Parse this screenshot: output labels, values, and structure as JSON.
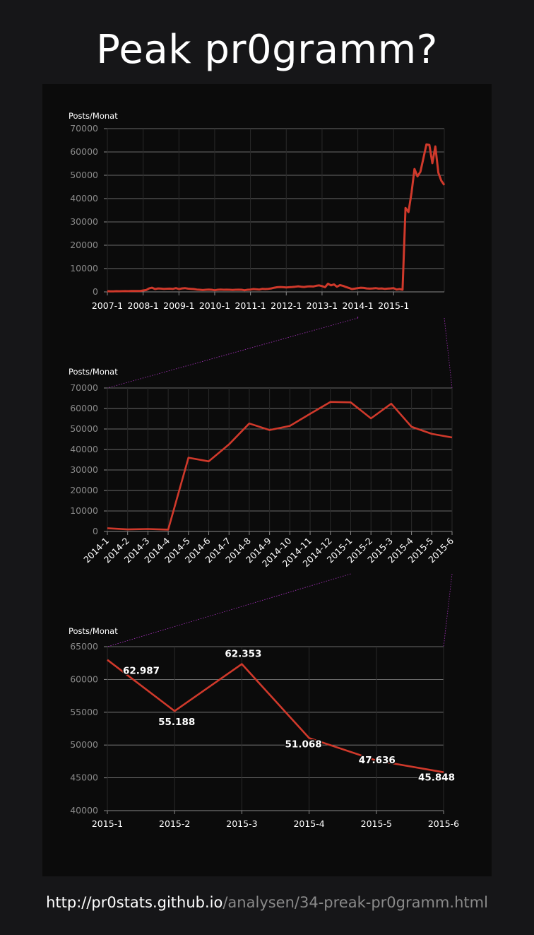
{
  "title": "Peak pr0gramm?",
  "footer": {
    "url_host": "http://pr0stats.github.io",
    "url_path": "/analysen/34-preak-pr0gramm.html"
  },
  "colors": {
    "line": "#d0392b",
    "zoom_connector": "#9b2fb0",
    "grid": "#8a8a8a",
    "text": "#ffffff",
    "panel": "#0b0b0b",
    "background": "#161618"
  },
  "chart_data": [
    {
      "type": "line",
      "ylabel": "Posts/Monat",
      "ylim": [
        0,
        70000
      ],
      "yticks": [
        0,
        10000,
        20000,
        30000,
        40000,
        50000,
        60000,
        70000
      ],
      "xticks": [
        "2007-1",
        "2008-1",
        "2009-1",
        "2010-1",
        "2011-1",
        "2012-1",
        "2013-1",
        "2014-1",
        "2015-1"
      ],
      "x_start": "2007-1",
      "x_end": "2015-6",
      "grid": true,
      "series": [
        {
          "values": [
            300,
            200,
            250,
            300,
            280,
            300,
            320,
            300,
            350,
            400,
            350,
            400,
            600,
            800,
            1500,
            1800,
            1200,
            1500,
            1400,
            1300,
            1350,
            1400,
            1300,
            1600,
            1200,
            1500,
            1600,
            1400,
            1300,
            1200,
            1000,
            900,
            800,
            900,
            1000,
            900,
            700,
            900,
            1000,
            900,
            950,
            900,
            850,
            900,
            950,
            900,
            700,
            900,
            1000,
            1200,
            1100,
            1000,
            1300,
            1200,
            1300,
            1500,
            1800,
            2000,
            2100,
            2000,
            1900,
            2000,
            2100,
            2200,
            2400,
            2200,
            2100,
            2300,
            2400,
            2300,
            2600,
            2800,
            2500,
            2000,
            3500,
            2800,
            3200,
            2200,
            2900,
            2600,
            2100,
            1700,
            1200,
            1400,
            1600,
            1800,
            1700,
            1500,
            1400,
            1500,
            1600,
            1400,
            1500,
            1300,
            1400,
            1500,
            1600,
            1000,
            1200,
            900,
            36000,
            34200,
            42500,
            52700,
            49500,
            51500,
            57400,
            63200,
            62987,
            55188,
            62353,
            51068,
            47636,
            45848
          ]
        }
      ]
    },
    {
      "type": "line",
      "ylabel": "Posts/Monat",
      "ylim": [
        0,
        70000
      ],
      "yticks": [
        0,
        10000,
        20000,
        30000,
        40000,
        50000,
        60000,
        70000
      ],
      "categories": [
        "2014-1",
        "2014-2",
        "2014-3",
        "2014-4",
        "2014-5",
        "2014-6",
        "2014-7",
        "2014-8",
        "2014-9",
        "2014-10",
        "2014-11",
        "2014-12",
        "2015-1",
        "2015-2",
        "2015-3",
        "2015-4",
        "2015-5",
        "2015-6"
      ],
      "grid": true,
      "series": [
        {
          "values": [
            1600,
            1000,
            1200,
            900,
            36000,
            34200,
            42500,
            52700,
            49500,
            51500,
            57400,
            63200,
            62987,
            55188,
            62353,
            51068,
            47636,
            45848
          ]
        }
      ]
    },
    {
      "type": "line",
      "ylabel": "Posts/Monat",
      "ylim": [
        40000,
        65000
      ],
      "yticks": [
        40000,
        45000,
        50000,
        55000,
        60000,
        65000
      ],
      "categories": [
        "2015-1",
        "2015-2",
        "2015-3",
        "2015-4",
        "2015-5",
        "2015-6"
      ],
      "grid": true,
      "series": [
        {
          "values": [
            62987,
            55188,
            62353,
            51068,
            47636,
            45848
          ],
          "data_labels": [
            "62.987",
            "55.188",
            "62.353",
            "51.068",
            "47.636",
            "45.848"
          ]
        }
      ]
    }
  ]
}
